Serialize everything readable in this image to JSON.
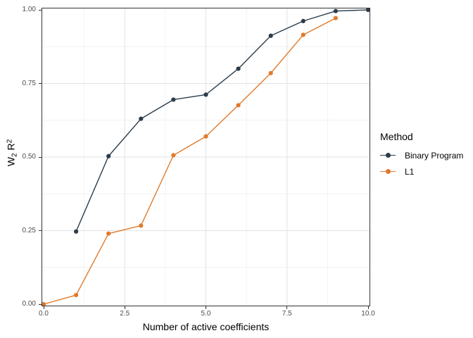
{
  "chart_data": {
    "type": "line",
    "title": "",
    "xlabel": "Number of active coefficients",
    "ylabel": "W2 R2",
    "ylabel_parts": {
      "base1": "W",
      "sub": "2",
      "base2": " R",
      "sup": "2"
    },
    "xlim": [
      0,
      10
    ],
    "ylim": [
      0,
      1
    ],
    "x_ticks": {
      "values": [
        0,
        2.5,
        5,
        7.5,
        10
      ],
      "labels": [
        "0.0",
        "2.5",
        "5.0",
        "7.5",
        "10.0"
      ]
    },
    "y_ticks": {
      "values": [
        0,
        0.25,
        0.5,
        0.75,
        1
      ],
      "labels": [
        "0.00",
        "0.25",
        "0.50",
        "0.75",
        "1.00"
      ]
    },
    "grid": {
      "style": "major-and-minor",
      "major_x": [
        2.5,
        5,
        7.5
      ],
      "major_y": [
        0.25,
        0.5,
        0.75
      ],
      "minor_x": [
        1.25,
        3.75,
        6.25,
        8.75
      ],
      "minor_y": [
        0.125,
        0.375,
        0.625,
        0.875
      ]
    },
    "legend": {
      "title": "Method",
      "position": "right",
      "entries": [
        "Binary Program",
        "L1"
      ]
    },
    "series": [
      {
        "name": "Binary Program",
        "color": "#2B3C4A",
        "x": [
          1,
          2,
          3,
          4,
          5,
          6,
          7,
          8,
          9,
          10
        ],
        "y": [
          0.247,
          0.503,
          0.63,
          0.695,
          0.712,
          0.8,
          0.912,
          0.962,
          0.996,
          1.0
        ]
      },
      {
        "name": "L1",
        "color": "#E07A2C",
        "x": [
          0,
          1,
          2,
          3,
          4,
          5,
          6,
          7,
          8,
          9
        ],
        "y": [
          0.0,
          0.031,
          0.24,
          0.267,
          0.506,
          0.57,
          0.676,
          0.785,
          0.915,
          0.972
        ]
      }
    ]
  },
  "colors": {
    "binary_program": "#2B3C4A",
    "l1": "#E07A2C",
    "grid_major": "#E3E3E3",
    "grid_minor": "#F1F1F1",
    "panel_border": "#333333",
    "tick_mark": "#333333",
    "tick_label": "#4D4D4D",
    "title_text": "#000000",
    "background": "#FFFFFF"
  }
}
